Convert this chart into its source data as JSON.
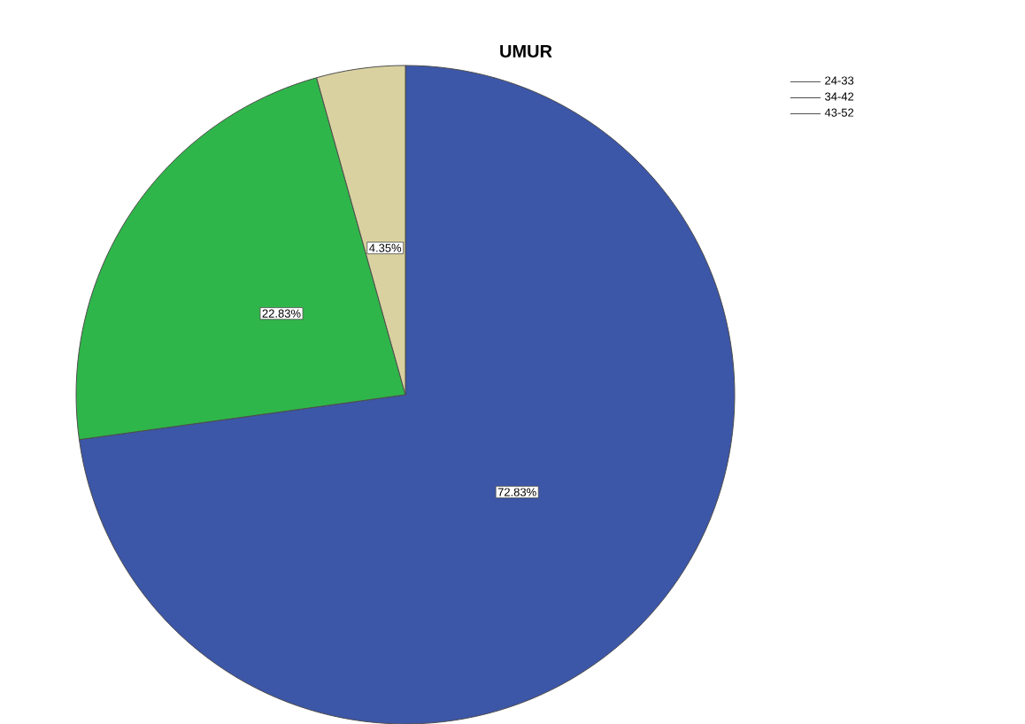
{
  "chart_data": {
    "type": "pie",
    "title": "UMUR",
    "categories": [
      "24-33",
      "34-42",
      "43-52"
    ],
    "values": [
      72.83,
      22.83,
      4.35
    ],
    "value_labels": [
      "72.83%",
      "22.83%",
      "4.35%"
    ],
    "colors": [
      "#3c56a8",
      "#2fb64a",
      "#d9d2a0"
    ],
    "legend": "top right"
  }
}
